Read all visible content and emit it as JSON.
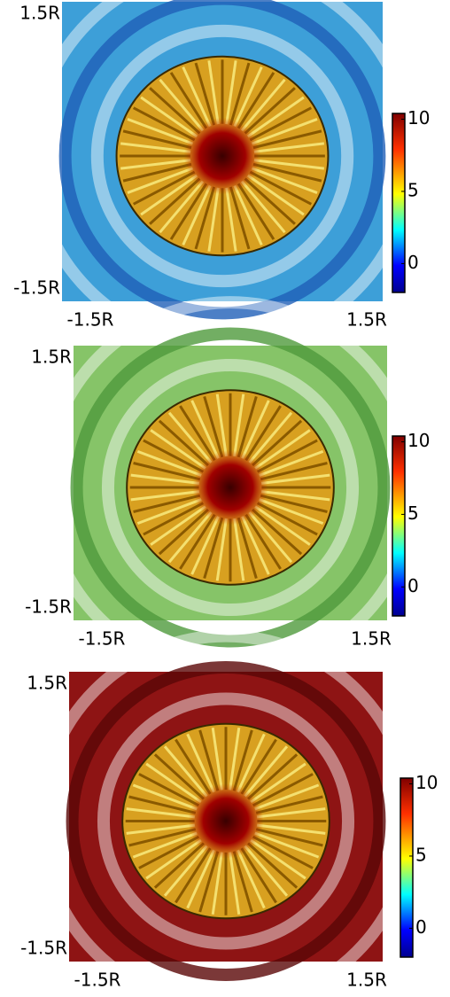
{
  "chart_data": [
    {
      "type": "heatmap",
      "background_color": "#3d9fd8",
      "ring_color": "#1f5fb8",
      "xlim": [
        -1.5,
        1.5
      ],
      "ylim": [
        -1.5,
        1.5
      ],
      "xticks": [
        {
          "value": -1.5,
          "label": "-1.5R"
        },
        {
          "value": 1.5,
          "label": "1.5R"
        }
      ],
      "yticks": [
        {
          "value": -1.5,
          "label": "-1.5R"
        },
        {
          "value": 1.5,
          "label": "1.5R"
        }
      ],
      "clim": [
        -2,
        10.4
      ],
      "cticks": [
        0,
        5,
        10
      ]
    },
    {
      "type": "heatmap",
      "background_color": "#86c468",
      "ring_color": "#4f9a3c",
      "xlim": [
        -1.5,
        1.5
      ],
      "ylim": [
        -1.5,
        1.5
      ],
      "xticks": [
        {
          "value": -1.5,
          "label": "-1.5R"
        },
        {
          "value": 1.5,
          "label": "1.5R"
        }
      ],
      "yticks": [
        {
          "value": -1.5,
          "label": "-1.5R"
        },
        {
          "value": 1.5,
          "label": "1.5R"
        }
      ],
      "clim": [
        -2,
        10.4
      ],
      "cticks": [
        0,
        5,
        10
      ]
    },
    {
      "type": "heatmap",
      "background_color": "#8e1414",
      "ring_color": "#5a0606",
      "xlim": [
        -1.5,
        1.5
      ],
      "ylim": [
        -1.5,
        1.5
      ],
      "xticks": [
        {
          "value": -1.5,
          "label": "-1.5R"
        },
        {
          "value": 1.5,
          "label": "1.5R"
        }
      ],
      "yticks": [
        {
          "value": -1.5,
          "label": "-1.5R"
        },
        {
          "value": 1.5,
          "label": "1.5R"
        }
      ],
      "clim": [
        -2,
        10.4
      ],
      "cticks": [
        0,
        5,
        10
      ]
    }
  ]
}
